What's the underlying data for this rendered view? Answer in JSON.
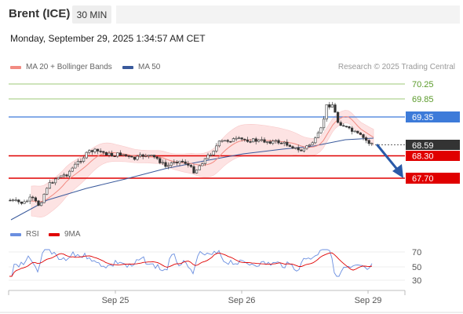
{
  "header": {
    "instrument": "Brent (ICE)",
    "timeframe": "30 MIN"
  },
  "datetime": "Monday, September 29, 2025 1:34:57 AM CET",
  "legend": {
    "ma_bb": "MA 20 + Bollinger Bands",
    "ma50": "MA 50",
    "credit": "Research © 2025 Trading Central"
  },
  "levels": {
    "l1": "70.25",
    "l2": "69.85",
    "l3": "69.35",
    "l4": "68.59",
    "l5": "68.30",
    "l6": "67.70"
  },
  "colors": {
    "green": "#7bb84a",
    "blue": "#3d7bd9",
    "red": "#e00000",
    "current": "#333333",
    "bb_fill": "#fde3e3",
    "ma20": "#f28b82",
    "ma50": "#3a5a9c",
    "rsi": "#6b8fe0",
    "rsi_ma": "#e00000",
    "arrow": "#2a5aa8"
  },
  "rsi_legend": {
    "rsi": "RSI",
    "ma": "9MA"
  },
  "rsi_axis": [
    "70",
    "50",
    "30"
  ],
  "x_axis": [
    "Sep 25",
    "Sep 26",
    "Sep 29"
  ]
}
